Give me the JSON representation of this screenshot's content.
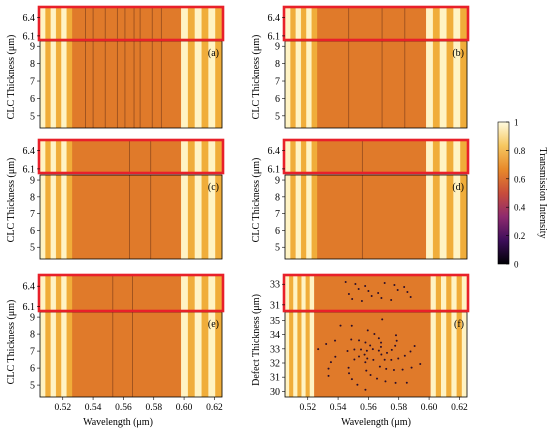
{
  "figure": {
    "colors": {
      "band": "#e07a2a",
      "band_dark": "#d36f1f",
      "edge_light": "#fff3c4",
      "edge_mid": "#f2b23c",
      "highlight_frame": "#e8202a",
      "axis": "#000000"
    },
    "colorbar": {
      "label": "Transmission Intensity",
      "ticks": [
        "1",
        "0.8",
        "0.6",
        "0.4",
        "0.2",
        "0"
      ],
      "stops": [
        "#fffbe0",
        "#f6c760",
        "#e8892a",
        "#c84d3b",
        "#8e2a6e",
        "#3d0e5a",
        "#000004"
      ]
    }
  },
  "chart_data": [
    {
      "id": "a",
      "type": "heatmap",
      "panel_label": "(a)",
      "xlabel": "",
      "ylabel": "CLC Thickness (μm)",
      "xlim": [
        0.505,
        0.625
      ],
      "zoom_ylim": [
        6.05,
        6.55
      ],
      "main_ylim": [
        4.3,
        9.3
      ],
      "zoom_ticks": [
        "6.4",
        "6.1"
      ],
      "zoom_tick_values": [
        6.4,
        6.1
      ],
      "y_ticks": [
        "9",
        "8",
        "7",
        "6",
        "5"
      ],
      "y_tick_values": [
        9,
        8,
        7,
        6,
        5
      ],
      "x_ticks": [],
      "x_tick_values": [],
      "band": [
        0.526,
        0.598
      ],
      "defect_lines": [
        0.535,
        0.54,
        0.548,
        0.556,
        0.561,
        0.567,
        0.571,
        0.579,
        0.585
      ]
    },
    {
      "id": "b",
      "type": "heatmap",
      "panel_label": "(b)",
      "xlabel": "",
      "ylabel": "CLC Thickness (μm)",
      "xlim": [
        0.505,
        0.625
      ],
      "zoom_ylim": [
        6.05,
        6.55
      ],
      "main_ylim": [
        4.3,
        9.3
      ],
      "zoom_ticks": [
        "6.4",
        "6.1"
      ],
      "zoom_tick_values": [
        6.4,
        6.1
      ],
      "y_ticks": [
        "9",
        "8",
        "7",
        "6",
        "5"
      ],
      "y_tick_values": [
        9,
        8,
        7,
        6,
        5
      ],
      "x_ticks": [],
      "x_tick_values": [],
      "band": [
        0.526,
        0.598
      ],
      "defect_lines": [
        0.547,
        0.569,
        0.584
      ]
    },
    {
      "id": "c",
      "type": "heatmap",
      "panel_label": "(c)",
      "xlabel": "",
      "ylabel": "CLC Thickness (μm)",
      "xlim": [
        0.505,
        0.625
      ],
      "zoom_ylim": [
        6.05,
        6.55
      ],
      "main_ylim": [
        4.3,
        9.3
      ],
      "zoom_ticks": [
        "6.4",
        "6.1"
      ],
      "zoom_tick_values": [
        6.4,
        6.1
      ],
      "y_ticks": [
        "9",
        "8",
        "7",
        "6",
        "5"
      ],
      "y_tick_values": [
        9,
        8,
        7,
        6,
        5
      ],
      "x_ticks": [],
      "x_tick_values": [],
      "band": [
        0.526,
        0.598
      ],
      "defect_lines": [
        0.564,
        0.578
      ]
    },
    {
      "id": "d",
      "type": "heatmap",
      "panel_label": "(d)",
      "xlabel": "",
      "ylabel": "CLC Thickness (μm)",
      "xlim": [
        0.505,
        0.625
      ],
      "zoom_ylim": [
        6.05,
        6.55
      ],
      "main_ylim": [
        4.3,
        9.3
      ],
      "zoom_ticks": [
        "6.4",
        "6.1"
      ],
      "zoom_tick_values": [
        6.4,
        6.1
      ],
      "y_ticks": [
        "9",
        "8",
        "7",
        "6",
        "5"
      ],
      "y_tick_values": [
        9,
        8,
        7,
        6,
        5
      ],
      "x_ticks": [],
      "x_tick_values": [],
      "band": [
        0.526,
        0.598
      ],
      "defect_lines": [
        0.556
      ]
    },
    {
      "id": "e",
      "type": "heatmap",
      "panel_label": "(e)",
      "xlabel": "Wavelength (μm)",
      "ylabel": "CLC Thickness (μm)",
      "xlim": [
        0.505,
        0.625
      ],
      "zoom_ylim": [
        6.05,
        6.55
      ],
      "main_ylim": [
        4.3,
        9.3
      ],
      "zoom_ticks": [
        "6.4",
        "6.1"
      ],
      "zoom_tick_values": [
        6.4,
        6.1
      ],
      "y_ticks": [
        "9",
        "8",
        "7",
        "6",
        "5"
      ],
      "y_tick_values": [
        9,
        8,
        7,
        6,
        5
      ],
      "x_ticks": [
        "0.52",
        "0.54",
        "0.56",
        "0.58",
        "0.60",
        "0.62"
      ],
      "x_tick_values": [
        0.52,
        0.54,
        0.56,
        0.58,
        0.6,
        0.62
      ],
      "band": [
        0.526,
        0.598
      ],
      "defect_lines": [
        0.553,
        0.566
      ]
    },
    {
      "id": "f",
      "type": "heatmap",
      "panel_label": "(f)",
      "xlabel": "Wavelength (μm)",
      "ylabel": "Defect Thickness (μm)",
      "xlim": [
        0.505,
        0.625
      ],
      "zoom_ylim": [
        30.5,
        33.8
      ],
      "main_ylim": [
        29.6,
        35.6
      ],
      "zoom_ticks": [
        "33",
        "31"
      ],
      "zoom_tick_values": [
        33,
        31
      ],
      "y_ticks": [
        "35",
        "34",
        "33",
        "32",
        "31",
        "30"
      ],
      "y_tick_values": [
        35,
        34,
        33,
        32,
        31,
        30
      ],
      "x_ticks": [
        "0.52",
        "0.54",
        "0.56",
        "0.58",
        "0.60",
        "0.62"
      ],
      "x_tick_values": [
        0.52,
        0.54,
        0.56,
        0.58,
        0.6,
        0.62
      ],
      "band": [
        0.524,
        0.601
      ],
      "defect_lines": []
    }
  ]
}
